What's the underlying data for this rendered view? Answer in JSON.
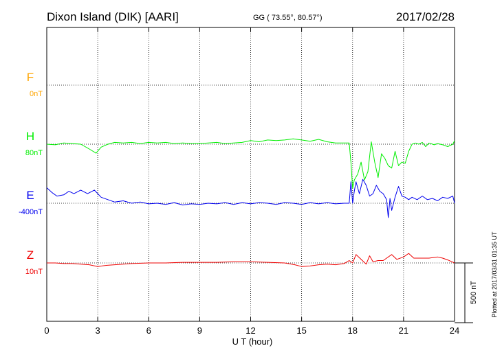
{
  "header": {
    "station": "Dixon Island (DIK)  [AARI]",
    "coords": "GG ( 73.55°,  80.57°)",
    "date": "2017/02/28"
  },
  "footer": {
    "plotted": "Plotted at 2017/03/31 01:35 UT"
  },
  "chart_data": {
    "type": "line",
    "xlabel": "U T (hour)",
    "xlim": [
      0,
      24
    ],
    "xticks": [
      "0",
      "3",
      "6",
      "9",
      "12",
      "15",
      "18",
      "21",
      "24"
    ],
    "scale_bar": "500 nT",
    "grid": true,
    "series": [
      {
        "name": "F",
        "baseline_label": "0nT",
        "color": "#ffa500",
        "x": [],
        "y": []
      },
      {
        "name": "H",
        "baseline_label": "80nT",
        "color": "#00ee00",
        "x": [
          0,
          0.5,
          1.0,
          1.5,
          2.0,
          2.5,
          2.9,
          3.2,
          3.6,
          4.0,
          4.5,
          5.0,
          5.5,
          6.0,
          6.5,
          7.0,
          7.5,
          8.0,
          8.5,
          9.0,
          9.5,
          10.0,
          10.5,
          11.0,
          11.5,
          12.0,
          12.5,
          13.0,
          13.5,
          14.0,
          14.5,
          15.0,
          15.5,
          16.0,
          16.5,
          17.0,
          17.5,
          17.8,
          17.9,
          18.0,
          18.1,
          18.3,
          18.5,
          18.7,
          18.9,
          19.1,
          19.3,
          19.5,
          19.7,
          19.9,
          20.1,
          20.3,
          20.5,
          20.7,
          20.9,
          21.1,
          21.3,
          21.5,
          21.7,
          21.9,
          22.1,
          22.3,
          22.5,
          22.8,
          23.0,
          23.3,
          23.6,
          23.9,
          24.0
        ],
        "y": [
          0,
          -5,
          10,
          5,
          0,
          -40,
          -75,
          -25,
          0,
          15,
          10,
          15,
          5,
          15,
          10,
          15,
          5,
          10,
          5,
          5,
          10,
          15,
          5,
          10,
          15,
          30,
          20,
          35,
          30,
          35,
          45,
          35,
          25,
          40,
          20,
          10,
          10,
          10,
          -150,
          -370,
          -300,
          -250,
          -150,
          -300,
          -230,
          20,
          -150,
          -280,
          -80,
          -120,
          -180,
          -200,
          -60,
          -180,
          -150,
          -160,
          -60,
          0,
          10,
          0,
          15,
          -20,
          10,
          -5,
          5,
          -5,
          -20,
          0,
          30
        ]
      },
      {
        "name": "E",
        "baseline_label": "-400nT",
        "color": "#0000ee",
        "x": [
          0,
          0.3,
          0.6,
          1.0,
          1.3,
          1.6,
          2.0,
          2.4,
          2.8,
          3.2,
          3.6,
          4.0,
          4.5,
          5.0,
          5.5,
          6.0,
          6.5,
          7.0,
          7.5,
          8.0,
          8.5,
          9.0,
          9.5,
          10.0,
          10.5,
          11.0,
          11.5,
          12.0,
          12.5,
          13.0,
          13.5,
          14.0,
          14.5,
          15.0,
          15.5,
          16.0,
          16.5,
          17.0,
          17.5,
          17.8,
          17.9,
          18.0,
          18.1,
          18.2,
          18.4,
          18.6,
          18.8,
          19.0,
          19.2,
          19.4,
          19.6,
          19.8,
          20.0,
          20.1,
          20.2,
          20.3,
          20.5,
          20.7,
          20.9,
          21.1,
          21.3,
          21.5,
          21.8,
          22.1,
          22.4,
          22.7,
          23.0,
          23.3,
          23.6,
          23.9,
          24.0
        ],
        "y": [
          130,
          90,
          60,
          70,
          100,
          80,
          110,
          80,
          110,
          50,
          30,
          10,
          20,
          0,
          10,
          -5,
          0,
          -10,
          5,
          -15,
          -5,
          -10,
          0,
          -5,
          5,
          -10,
          5,
          -5,
          5,
          0,
          -10,
          5,
          0,
          -10,
          5,
          -5,
          5,
          -5,
          0,
          0,
          180,
          0,
          100,
          180,
          80,
          200,
          150,
          60,
          80,
          150,
          100,
          80,
          30,
          -120,
          40,
          -60,
          50,
          140,
          60,
          50,
          30,
          50,
          30,
          60,
          30,
          40,
          20,
          50,
          40,
          60,
          0
        ]
      },
      {
        "name": "Z",
        "baseline_label": "10nT",
        "color": "#ee0000",
        "x": [
          0,
          0.5,
          1.0,
          1.5,
          2.0,
          2.5,
          3.0,
          3.5,
          4.0,
          4.5,
          5.0,
          6.0,
          7.0,
          8.0,
          9.0,
          10.0,
          11.0,
          12.0,
          13.0,
          14.0,
          14.6,
          15.0,
          15.5,
          16.0,
          16.5,
          17.0,
          17.5,
          17.8,
          18.0,
          18.2,
          18.5,
          18.8,
          19.0,
          19.2,
          19.5,
          19.8,
          20.0,
          20.3,
          20.6,
          21.0,
          21.3,
          21.6,
          22.0,
          22.5,
          23.0,
          23.3,
          23.6,
          24.0
        ],
        "y": [
          0,
          0,
          -5,
          -5,
          -10,
          -15,
          -30,
          -20,
          -15,
          -10,
          -5,
          0,
          0,
          5,
          5,
          5,
          10,
          10,
          5,
          0,
          -15,
          -30,
          -25,
          -15,
          -10,
          -15,
          -5,
          20,
          0,
          70,
          30,
          -10,
          60,
          10,
          20,
          20,
          40,
          70,
          30,
          50,
          80,
          40,
          40,
          40,
          50,
          40,
          25,
          0
        ]
      }
    ]
  }
}
